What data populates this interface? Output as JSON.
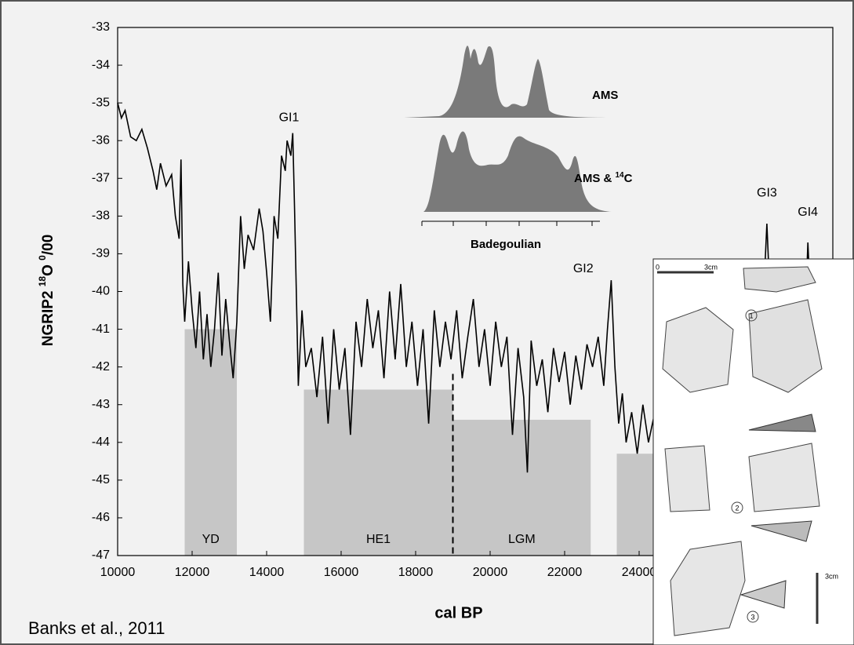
{
  "chart_data": {
    "type": "line",
    "x_label": "cal BP",
    "y_label_parts": [
      "NGRIP2 ",
      "18",
      "O ",
      "0",
      "/00"
    ],
    "xlim": [
      10000,
      29200
    ],
    "xticks": [
      10000,
      12000,
      14000,
      16000,
      18000,
      20000,
      22000,
      24000
    ],
    "ylim": [
      -47,
      -33
    ],
    "yticks": [
      -47,
      -46,
      -45,
      -44,
      -43,
      -42,
      -41,
      -40,
      -39,
      -38,
      -37,
      -36,
      -35,
      -34,
      -33
    ],
    "divider_x": 19000,
    "bands": [
      {
        "name": "YD",
        "x0": 11800,
        "x1": 13200,
        "top": -41.0
      },
      {
        "name": "HE1",
        "x0": 15000,
        "x1": 19000,
        "top": -42.6
      },
      {
        "name": "LGM",
        "x0": 19000,
        "x1": 22700,
        "top": -43.4
      },
      {
        "name": null,
        "x0": 23400,
        "x1": 29200,
        "top": -44.3
      }
    ],
    "annotations": [
      {
        "text": "GI1",
        "x": 14600,
        "y": -35.4
      },
      {
        "text": "GI2",
        "x": 22500,
        "y": -39.4
      },
      {
        "text": "GI3",
        "x": 27430,
        "y": -37.4
      },
      {
        "text": "GI4",
        "x": 28530,
        "y": -37.9
      }
    ],
    "series": [
      {
        "name": "NGRIP2",
        "color": "#000000",
        "x": [
          10000,
          10100,
          10200,
          10350,
          10500,
          10650,
          10800,
          10950,
          11050,
          11150,
          11300,
          11450,
          11550,
          11650,
          11700,
          11750,
          11800,
          11900,
          12000,
          12100,
          12200,
          12300,
          12400,
          12500,
          12600,
          12700,
          12800,
          12900,
          13000,
          13100,
          13200,
          13300,
          13400,
          13500,
          13650,
          13800,
          13900,
          14000,
          14100,
          14200,
          14300,
          14400,
          14500,
          14550,
          14650,
          14700,
          14750,
          14850,
          14950,
          15050,
          15200,
          15350,
          15500,
          15650,
          15800,
          15950,
          16100,
          16250,
          16400,
          16550,
          16700,
          16850,
          17000,
          17150,
          17300,
          17450,
          17600,
          17750,
          17900,
          18050,
          18200,
          18350,
          18500,
          18650,
          18800,
          18950,
          19100,
          19250,
          19400,
          19550,
          19700,
          19850,
          20000,
          20150,
          20300,
          20450,
          20600,
          20750,
          20900,
          21000,
          21100,
          21250,
          21400,
          21550,
          21700,
          21850,
          22000,
          22150,
          22300,
          22450,
          22600,
          22750,
          22900,
          23050,
          23150,
          23250,
          23350,
          23450,
          23550,
          23650,
          23800,
          23950,
          24100,
          24250,
          24400,
          24550,
          24700,
          25000,
          25300,
          25600,
          25900,
          26200,
          26500,
          26800,
          27100,
          27300,
          27430,
          27550,
          27800,
          28100,
          28400,
          28530,
          28650,
          29000
        ],
        "values": [
          -35.0,
          -35.4,
          -35.2,
          -35.9,
          -36.0,
          -35.7,
          -36.2,
          -36.8,
          -37.3,
          -36.6,
          -37.2,
          -36.9,
          -38.0,
          -38.6,
          -36.5,
          -39.8,
          -40.8,
          -39.2,
          -40.5,
          -41.5,
          -40.0,
          -41.8,
          -40.6,
          -42.0,
          -41.0,
          -39.5,
          -41.7,
          -40.2,
          -41.3,
          -42.3,
          -40.8,
          -38.0,
          -39.4,
          -38.5,
          -38.9,
          -37.8,
          -38.4,
          -39.5,
          -40.8,
          -38.0,
          -38.6,
          -36.4,
          -36.8,
          -36.0,
          -36.4,
          -35.8,
          -37.8,
          -42.5,
          -40.5,
          -42.0,
          -41.5,
          -42.8,
          -41.2,
          -43.5,
          -41.0,
          -42.6,
          -41.5,
          -43.8,
          -40.8,
          -42.0,
          -40.2,
          -41.5,
          -40.5,
          -42.3,
          -40.0,
          -41.8,
          -39.8,
          -42.0,
          -40.8,
          -42.5,
          -41.0,
          -43.5,
          -40.5,
          -42.0,
          -40.8,
          -41.8,
          -40.5,
          -42.3,
          -41.2,
          -40.2,
          -42.0,
          -41.0,
          -42.5,
          -40.8,
          -42.0,
          -41.2,
          -43.8,
          -41.5,
          -42.8,
          -44.8,
          -41.3,
          -42.5,
          -41.8,
          -43.2,
          -41.5,
          -42.4,
          -41.6,
          -43.0,
          -41.7,
          -42.6,
          -41.4,
          -42.0,
          -41.2,
          -42.5,
          -41.0,
          -39.7,
          -42.0,
          -43.5,
          -42.7,
          -44.0,
          -43.2,
          -44.3,
          -43.0,
          -44.0,
          -43.3,
          -42.0,
          -43.5,
          -42.5,
          -43.8,
          -42.0,
          -43.0,
          -41.8,
          -42.6,
          -41.5,
          -42.2,
          -41.0,
          -38.2,
          -41.0,
          -42.0,
          -41.2,
          -42.3,
          -38.7,
          -41.5,
          -42.0
        ]
      }
    ],
    "inset": {
      "curves": [
        "AMS",
        "AMS & "
      ],
      "iso_sup": "14",
      "iso_el": "C",
      "axis_label": "Badegoulian"
    },
    "photo": {
      "scale_start": "0",
      "scale_end": "3cm",
      "vertical_scale": "3cm",
      "items": [
        "1",
        "2",
        "3"
      ]
    },
    "citation": "Banks et al., 2011"
  }
}
